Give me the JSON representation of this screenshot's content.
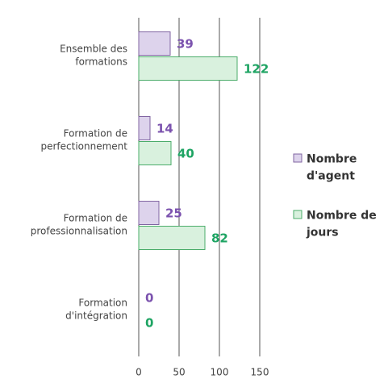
{
  "chart_data": {
    "type": "hbar",
    "categories": [
      "Ensemble des\nformations",
      "Formation de\nperfectionnement",
      "Formation de\nprofessionnalisation",
      "Formation\nd'intégration"
    ],
    "series": [
      {
        "name": "Nombre\nd'agent",
        "color": "#8064a2",
        "fill": "#ddd3ec",
        "label_color": "#7b52ae",
        "values": [
          39,
          14,
          25,
          0
        ]
      },
      {
        "name": "Nombre de\njours",
        "color": "#4bac6a",
        "fill": "#d9f1de",
        "label_color": "#1ea463",
        "values": [
          122,
          40,
          82,
          0
        ]
      }
    ],
    "xlim": [
      0,
      150
    ],
    "xticks": [
      0,
      50,
      100,
      150
    ],
    "grid": true,
    "legend": "right"
  }
}
